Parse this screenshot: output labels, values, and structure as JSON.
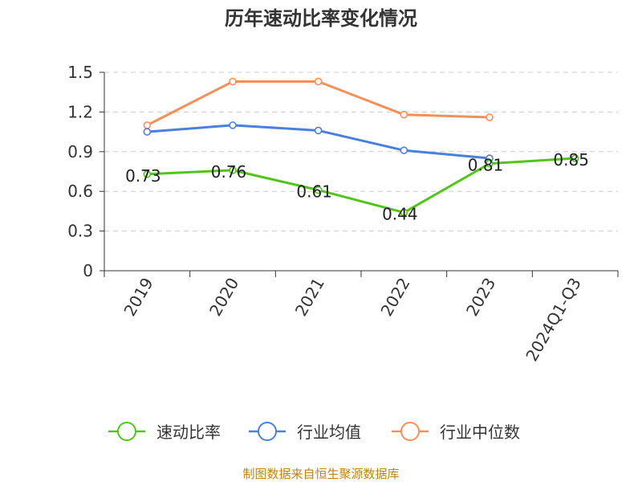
{
  "chart_data": {
    "type": "line",
    "title": "历年速动比率变化情况",
    "categories": [
      "2019",
      "2020",
      "2021",
      "2022",
      "2023",
      "2024Q1-Q3"
    ],
    "ylim": [
      0,
      1.5
    ],
    "yticks": [
      "0",
      "0.3",
      "0.6",
      "0.9",
      "1.2",
      "1.5"
    ],
    "grid": true,
    "legend_position": "bottom",
    "series": [
      {
        "name": "速动比率",
        "color": "#52c41a",
        "values": [
          0.73,
          0.76,
          0.61,
          0.44,
          0.81,
          0.85
        ],
        "labels": [
          "0.73",
          "0.76",
          "0.61",
          "0.44",
          "0.81",
          "0.85"
        ]
      },
      {
        "name": "行业均值",
        "color": "#4a7fdc",
        "values": [
          1.05,
          1.1,
          1.06,
          0.91,
          0.85,
          null
        ]
      },
      {
        "name": "行业中位数",
        "color": "#f5905a",
        "values": [
          1.1,
          1.43,
          1.43,
          1.18,
          1.16,
          null
        ]
      }
    ]
  },
  "source": "制图数据来自恒生聚源数据库"
}
